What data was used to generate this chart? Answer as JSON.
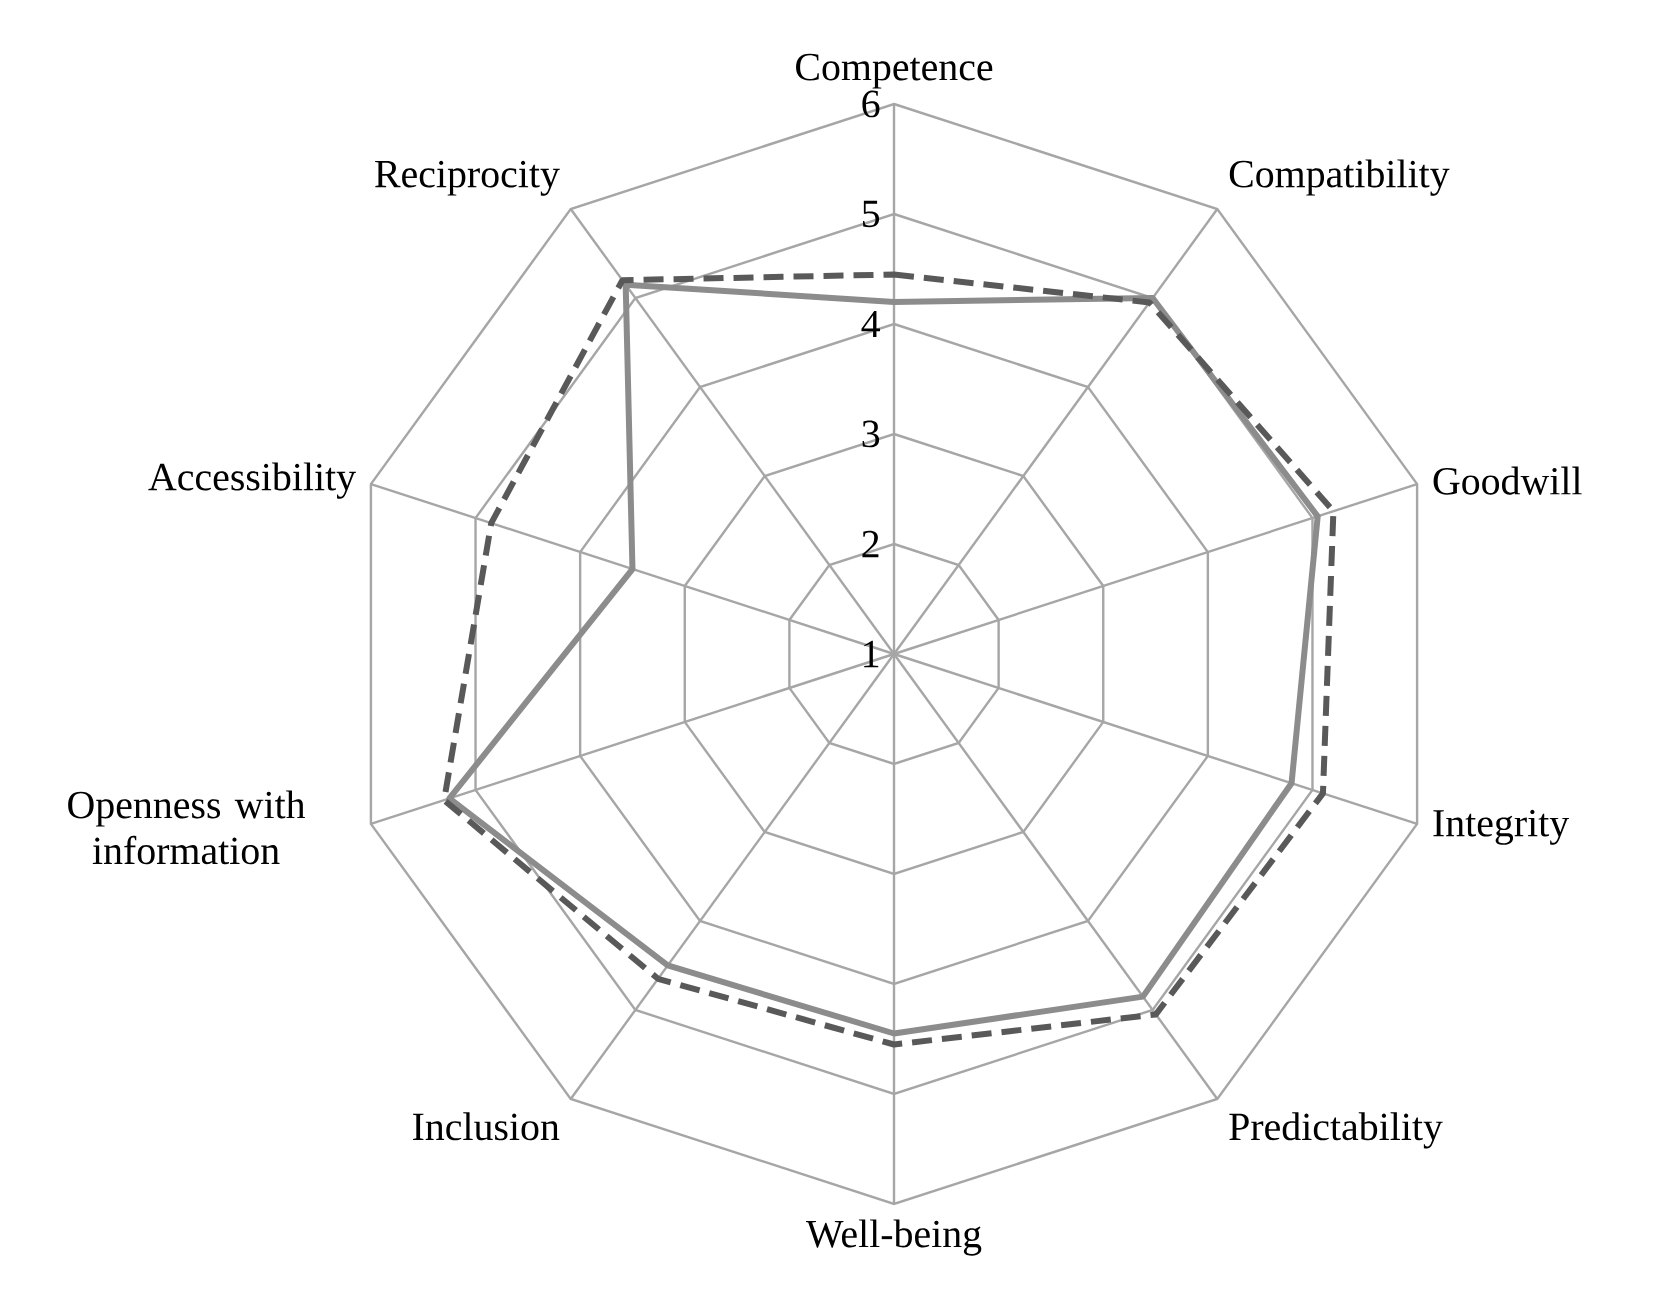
{
  "chart_data": {
    "type": "radar",
    "categories": [
      "Competence",
      "Compatibility",
      "Goodwill",
      "Integrity",
      "Predictability",
      "Well-being",
      "Inclusion",
      "Openness with information",
      "Accessibility",
      "Reciprocity"
    ],
    "ylim": [
      1,
      6
    ],
    "yticks": [
      1,
      2,
      3,
      4,
      5,
      6
    ],
    "grid": true,
    "series": [
      {
        "color": "#8c8c8c",
        "line_style": "solid",
        "values": [
          4.2,
          5.0,
          5.05,
          4.8,
          4.85,
          4.45,
          4.5,
          5.25,
          3.5,
          5.15
        ]
      },
      {
        "color": "#595959",
        "line_style": "dashed",
        "values": [
          4.45,
          4.95,
          5.2,
          5.1,
          5.05,
          4.55,
          4.65,
          5.3,
          4.85,
          5.2
        ]
      }
    ]
  }
}
